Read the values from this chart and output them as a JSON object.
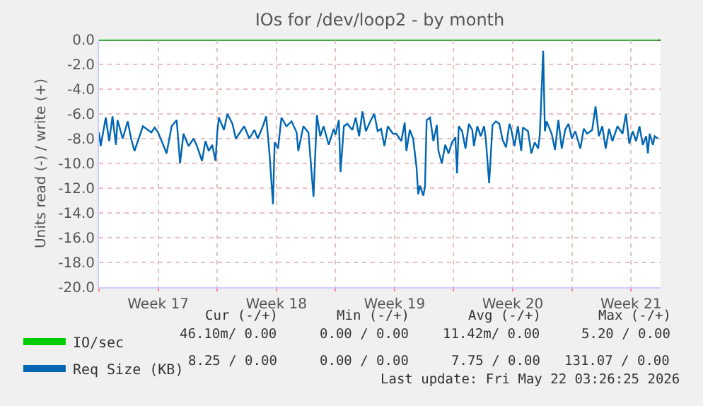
{
  "chart_data": {
    "type": "line",
    "title": "IOs for /dev/loop2 - by month",
    "ylabel": "Units read (-) / write (+)",
    "xlim": [
      "2026-04-20T00:00",
      "2026-05-23T06:00"
    ],
    "xticks": [
      {
        "value": "2026-04-20T00:00",
        "label": null
      },
      {
        "value": "2026-04-23T12:00",
        "label": "Week 17"
      },
      {
        "value": "2026-04-27T00:00",
        "label": null
      },
      {
        "value": "2026-04-30T12:00",
        "label": "Week 18"
      },
      {
        "value": "2026-05-04T00:00",
        "label": null
      },
      {
        "value": "2026-05-07T12:00",
        "label": "Week 19"
      },
      {
        "value": "2026-05-11T00:00",
        "label": null
      },
      {
        "value": "2026-05-14T12:00",
        "label": "Week 20"
      },
      {
        "value": "2026-05-18T00:00",
        "label": null
      },
      {
        "value": "2026-05-21T12:00",
        "label": "Week 21"
      }
    ],
    "ylim": [
      -20,
      0
    ],
    "yticks": [
      {
        "value": 0,
        "label": "0.0"
      },
      {
        "value": -2,
        "label": "-2.0"
      },
      {
        "value": -4,
        "label": "-4.0"
      },
      {
        "value": -6,
        "label": "-6.0"
      },
      {
        "value": -8,
        "label": "-8.0"
      },
      {
        "value": -10,
        "label": "-10.0"
      },
      {
        "value": -12,
        "label": "-12.0"
      },
      {
        "value": -14,
        "label": "-14.0"
      },
      {
        "value": -16,
        "label": "-16.0"
      },
      {
        "value": -18,
        "label": "-18.0"
      },
      {
        "value": -20,
        "label": "-20.0"
      }
    ],
    "grid": true,
    "legend": "bottom left",
    "marker": "none",
    "line_style": "solid",
    "ref_lines": [
      {
        "axis": "y",
        "value": 0,
        "color": "#000000"
      }
    ],
    "series": [
      {
        "name": "IO/sec",
        "color": "#00cc00",
        "x": [
          "2026-04-20T00:00",
          "2026-05-23T02:24"
        ],
        "values": [
          0,
          0
        ]
      },
      {
        "name": "Req Size (KB)",
        "color": "#0066b3",
        "x": [
          "2026-04-20T00:00",
          "2026-04-20T02:24",
          "2026-04-20T09:36",
          "2026-04-20T14:24",
          "2026-04-20T19:12",
          "2026-04-21T00:00",
          "2026-04-21T02:24",
          "2026-04-21T09:36",
          "2026-04-21T16:48",
          "2026-04-21T21:36",
          "2026-04-22T02:24",
          "2026-04-22T07:12",
          "2026-04-22T14:24",
          "2026-04-22T21:36",
          "2026-04-23T02:24",
          "2026-04-23T07:12",
          "2026-04-23T12:00",
          "2026-04-23T19:12",
          "2026-04-24T00:00",
          "2026-04-24T07:12",
          "2026-04-24T14:24",
          "2026-04-24T19:12",
          "2026-04-25T00:00",
          "2026-04-25T07:12",
          "2026-04-25T14:24",
          "2026-04-25T19:12",
          "2026-04-26T02:24",
          "2026-04-26T07:12",
          "2026-04-26T12:00",
          "2026-04-26T16:48",
          "2026-04-26T21:36",
          "2026-04-27T00:00",
          "2026-04-27T02:24",
          "2026-04-27T09:36",
          "2026-04-27T14:24",
          "2026-04-27T21:36",
          "2026-04-28T02:24",
          "2026-04-28T07:12",
          "2026-04-28T14:24",
          "2026-04-28T21:36",
          "2026-04-29T04:48",
          "2026-04-29T09:36",
          "2026-04-29T16:48",
          "2026-04-29T21:36",
          "2026-04-30T02:24",
          "2026-04-30T07:12",
          "2026-04-30T09:36",
          "2026-04-30T14:24",
          "2026-04-30T19:12",
          "2026-05-01T02:24",
          "2026-05-01T09:36",
          "2026-05-01T16:48",
          "2026-05-01T19:12",
          "2026-05-02T02:24",
          "2026-05-02T09:36",
          "2026-05-02T16:48",
          "2026-05-02T21:36",
          "2026-05-03T02:24",
          "2026-05-03T07:12",
          "2026-05-03T14:24",
          "2026-05-03T21:36",
          "2026-05-04T00:00",
          "2026-05-04T04:48",
          "2026-05-04T07:12",
          "2026-05-04T12:00",
          "2026-05-04T16:48",
          "2026-05-05T00:00",
          "2026-05-05T04:48",
          "2026-05-05T09:36",
          "2026-05-05T14:24",
          "2026-05-05T19:12",
          "2026-05-06T02:24",
          "2026-05-06T07:12",
          "2026-05-06T12:00",
          "2026-05-06T16:48",
          "2026-05-06T21:36",
          "2026-05-07T02:24",
          "2026-05-07T09:36",
          "2026-05-07T14:24",
          "2026-05-07T21:36",
          "2026-05-08T02:24",
          "2026-05-08T04:48",
          "2026-05-08T09:36",
          "2026-05-08T14:24",
          "2026-05-08T19:12",
          "2026-05-08T21:36",
          "2026-05-09T00:00",
          "2026-05-09T04:48",
          "2026-05-09T07:12",
          "2026-05-09T09:36",
          "2026-05-09T14:24",
          "2026-05-09T19:12",
          "2026-05-10T00:00",
          "2026-05-10T02:24",
          "2026-05-10T07:12",
          "2026-05-10T12:00",
          "2026-05-10T16:48",
          "2026-05-10T21:36",
          "2026-05-11T02:24",
          "2026-05-11T04:48",
          "2026-05-11T07:12",
          "2026-05-11T12:00",
          "2026-05-11T16:48",
          "2026-05-11T21:36",
          "2026-05-12T02:24",
          "2026-05-12T04:48",
          "2026-05-12T09:36",
          "2026-05-12T14:24",
          "2026-05-12T19:12",
          "2026-05-12T21:36",
          "2026-05-13T02:24",
          "2026-05-13T07:12",
          "2026-05-13T12:00",
          "2026-05-13T16:48",
          "2026-05-13T21:36",
          "2026-05-14T02:24",
          "2026-05-14T07:12",
          "2026-05-14T09:36",
          "2026-05-14T14:24",
          "2026-05-14T19:12",
          "2026-05-15T00:00",
          "2026-05-15T02:24",
          "2026-05-15T09:36",
          "2026-05-15T14:24",
          "2026-05-15T19:12",
          "2026-05-16T00:00",
          "2026-05-16T02:24",
          "2026-05-16T07:12",
          "2026-05-16T09:36",
          "2026-05-16T12:00",
          "2026-05-16T19:12",
          "2026-05-17T00:00",
          "2026-05-17T04:48",
          "2026-05-17T09:36",
          "2026-05-17T14:24",
          "2026-05-17T19:12",
          "2026-05-18T00:00",
          "2026-05-18T04:48",
          "2026-05-18T12:00",
          "2026-05-18T16:48",
          "2026-05-18T21:36",
          "2026-05-19T04:48",
          "2026-05-19T09:36",
          "2026-05-19T14:24",
          "2026-05-19T19:12",
          "2026-05-20T00:00",
          "2026-05-20T04:48",
          "2026-05-20T09:36",
          "2026-05-20T16:48",
          "2026-05-21T00:00",
          "2026-05-21T04:48",
          "2026-05-21T09:36",
          "2026-05-21T14:24",
          "2026-05-21T19:12",
          "2026-05-22T00:00",
          "2026-05-22T04:48",
          "2026-05-22T09:36",
          "2026-05-22T12:00",
          "2026-05-22T14:24",
          "2026-05-22T19:12",
          "2026-05-22T21:36",
          "2026-05-23T02:24"
        ],
        "values": [
          -7.5,
          -8.6,
          -6.3,
          -8.2,
          -6.2,
          -8.5,
          -6.5,
          -8.0,
          -6.6,
          -8.0,
          -9.0,
          -8.2,
          -7.0,
          -7.3,
          -7.5,
          -7.1,
          -7.5,
          -8.5,
          -9.2,
          -7.0,
          -6.5,
          -10.0,
          -7.6,
          -8.6,
          -8.0,
          -8.6,
          -9.8,
          -8.2,
          -9.0,
          -8.5,
          -9.8,
          -7.5,
          -6.3,
          -7.3,
          -6.0,
          -6.8,
          -8.0,
          -7.6,
          -7.0,
          -8.0,
          -7.3,
          -8.0,
          -7.0,
          -6.2,
          -9.3,
          -13.3,
          -8.3,
          -8.8,
          -6.3,
          -7.0,
          -6.6,
          -7.5,
          -9.0,
          -7.0,
          -7.5,
          -12.7,
          -6.1,
          -7.8,
          -7.0,
          -8.5,
          -7.2,
          -7.7,
          -6.5,
          -10.7,
          -7.0,
          -6.8,
          -7.3,
          -6.3,
          -7.8,
          -5.8,
          -7.4,
          -6.5,
          -6.0,
          -7.4,
          -7.2,
          -8.6,
          -7.0,
          -7.6,
          -7.6,
          -8.2,
          -6.7,
          -9.0,
          -7.3,
          -8.0,
          -10.3,
          -12.5,
          -11.8,
          -12.6,
          -11.9,
          -6.5,
          -6.3,
          -8.2,
          -6.9,
          -9.0,
          -10.0,
          -8.5,
          -9.2,
          -8.3,
          -7.9,
          -10.8,
          -7.0,
          -7.4,
          -8.8,
          -6.8,
          -7.3,
          -8.6,
          -7.0,
          -7.8,
          -7.0,
          -8.0,
          -11.6,
          -6.9,
          -6.6,
          -6.8,
          -8.1,
          -8.7,
          -6.8,
          -7.2,
          -8.6,
          -7.0,
          -9.0,
          -7.1,
          -7.4,
          -9.2,
          -8.3,
          -8.8,
          -7.7,
          -0.9,
          -7.4,
          -6.6,
          -7.6,
          -8.9,
          -6.5,
          -8.8,
          -7.3,
          -6.8,
          -8.0,
          -7.4,
          -8.8,
          -7.2,
          -7.6,
          -7.3,
          -5.4,
          -7.8,
          -7.0,
          -8.8,
          -7.2,
          -8.2,
          -7.0,
          -7.6,
          -6.0,
          -8.4,
          -7.4,
          -8.2,
          -7.0,
          -8.5,
          -7.8,
          -9.2,
          -7.6,
          -8.5,
          -7.8,
          -8.0
        ]
      }
    ],
    "annotations": [
      "Cur (-/+)",
      "Min (-/+)",
      "Avg (-/+)",
      "Max (-/+)",
      "46.10m/ 0.00",
      "0.00 / 0.00",
      "11.42m/ 0.00",
      "5.20 / 0.00",
      "8.25 / 0.00",
      "0.00 / 0.00",
      "7.75 / 0.00",
      "131.07 / 0.00",
      "Last update: Fri May 22 03:26:25 2026"
    ]
  }
}
